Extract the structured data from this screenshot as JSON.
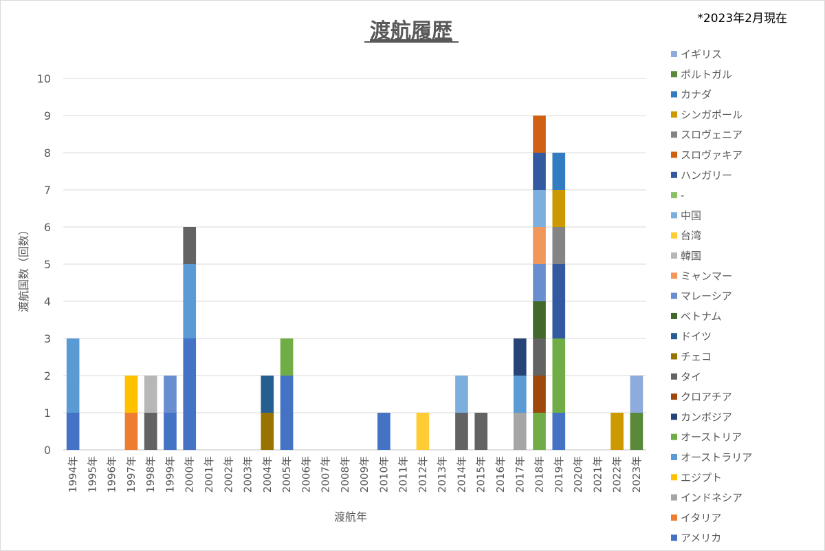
{
  "chart_data": {
    "type": "bar",
    "stacked": true,
    "title": "渡航履歴",
    "note": "*2023年2月現在",
    "xlabel": "渡航年",
    "ylabel": "渡航国数（回数）",
    "ylim": [
      0,
      10
    ],
    "yticks": [
      0,
      1,
      2,
      3,
      4,
      5,
      6,
      7,
      8,
      9,
      10
    ],
    "grid": true,
    "legend_position": "right",
    "categories": [
      "1994年",
      "1995年",
      "1996年",
      "1997年",
      "1998年",
      "1999年",
      "2000年",
      "2001年",
      "2002年",
      "2003年",
      "2004年",
      "2005年",
      "2006年",
      "2007年",
      "2008年",
      "2009年",
      "2010年",
      "2011年",
      "2012年",
      "2013年",
      "2014年",
      "2015年",
      "2016年",
      "2017年",
      "2018年",
      "2019年",
      "2020年",
      "2021年",
      "2022年",
      "2023年"
    ],
    "series": [
      {
        "name": "アメリカ",
        "color": "#4472C4",
        "values": [
          1,
          0,
          0,
          0,
          0,
          1,
          3,
          0,
          0,
          0,
          0,
          2,
          0,
          0,
          0,
          0,
          1,
          0,
          0,
          0,
          0,
          0,
          0,
          0,
          0,
          1,
          0,
          0,
          0,
          0
        ]
      },
      {
        "name": "イタリア",
        "color": "#ED7D31",
        "values": [
          0,
          0,
          0,
          1,
          0,
          0,
          0,
          0,
          0,
          0,
          0,
          0,
          0,
          0,
          0,
          0,
          0,
          0,
          0,
          0,
          0,
          0,
          0,
          0,
          0,
          0,
          0,
          0,
          0,
          0
        ]
      },
      {
        "name": "インドネシア",
        "color": "#A5A5A5",
        "values": [
          0,
          0,
          0,
          0,
          0,
          0,
          0,
          0,
          0,
          0,
          0,
          0,
          0,
          0,
          0,
          0,
          0,
          0,
          0,
          0,
          0,
          0,
          0,
          1,
          0,
          0,
          0,
          0,
          0,
          0
        ]
      },
      {
        "name": "エジプト",
        "color": "#FFC000",
        "values": [
          0,
          0,
          0,
          1,
          0,
          0,
          0,
          0,
          0,
          0,
          0,
          0,
          0,
          0,
          0,
          0,
          0,
          0,
          0,
          0,
          0,
          0,
          0,
          0,
          0,
          0,
          0,
          0,
          0,
          0
        ]
      },
      {
        "name": "オーストラリア",
        "color": "#5B9BD5",
        "values": [
          2,
          0,
          0,
          0,
          0,
          0,
          2,
          0,
          0,
          0,
          0,
          0,
          0,
          0,
          0,
          0,
          0,
          0,
          0,
          0,
          0,
          0,
          0,
          1,
          0,
          0,
          0,
          0,
          0,
          0
        ]
      },
      {
        "name": "オーストリア",
        "color": "#70AD47",
        "values": [
          0,
          0,
          0,
          0,
          0,
          0,
          0,
          0,
          0,
          0,
          0,
          1,
          0,
          0,
          0,
          0,
          0,
          0,
          0,
          0,
          0,
          0,
          0,
          0,
          1,
          2,
          0,
          0,
          0,
          0
        ]
      },
      {
        "name": "カンボジア",
        "color": "#264478",
        "values": [
          0,
          0,
          0,
          0,
          0,
          0,
          0,
          0,
          0,
          0,
          0,
          0,
          0,
          0,
          0,
          0,
          0,
          0,
          0,
          0,
          0,
          0,
          0,
          1,
          0,
          0,
          0,
          0,
          0,
          0
        ]
      },
      {
        "name": "クロアチア",
        "color": "#9E480E",
        "values": [
          0,
          0,
          0,
          0,
          0,
          0,
          0,
          0,
          0,
          0,
          0,
          0,
          0,
          0,
          0,
          0,
          0,
          0,
          0,
          0,
          0,
          0,
          0,
          0,
          1,
          0,
          0,
          0,
          0,
          0
        ]
      },
      {
        "name": "タイ",
        "color": "#636363",
        "values": [
          0,
          0,
          0,
          0,
          1,
          0,
          1,
          0,
          0,
          0,
          0,
          0,
          0,
          0,
          0,
          0,
          0,
          0,
          0,
          0,
          1,
          1,
          0,
          0,
          1,
          0,
          0,
          0,
          0,
          0
        ]
      },
      {
        "name": "チェコ",
        "color": "#997300",
        "values": [
          0,
          0,
          0,
          0,
          0,
          0,
          0,
          0,
          0,
          0,
          1,
          0,
          0,
          0,
          0,
          0,
          0,
          0,
          0,
          0,
          0,
          0,
          0,
          0,
          0,
          0,
          0,
          0,
          0,
          0
        ]
      },
      {
        "name": "ドイツ",
        "color": "#255E91",
        "values": [
          0,
          0,
          0,
          0,
          0,
          0,
          0,
          0,
          0,
          0,
          1,
          0,
          0,
          0,
          0,
          0,
          0,
          0,
          0,
          0,
          0,
          0,
          0,
          0,
          0,
          0,
          0,
          0,
          0,
          0
        ]
      },
      {
        "name": "ベトナム",
        "color": "#43682B",
        "values": [
          0,
          0,
          0,
          0,
          0,
          0,
          0,
          0,
          0,
          0,
          0,
          0,
          0,
          0,
          0,
          0,
          0,
          0,
          0,
          0,
          0,
          0,
          0,
          0,
          1,
          0,
          0,
          0,
          0,
          0
        ]
      },
      {
        "name": "マレーシア",
        "color": "#698ED0",
        "values": [
          0,
          0,
          0,
          0,
          0,
          1,
          0,
          0,
          0,
          0,
          0,
          0,
          0,
          0,
          0,
          0,
          0,
          0,
          0,
          0,
          0,
          0,
          0,
          0,
          1,
          0,
          0,
          0,
          0,
          0
        ]
      },
      {
        "name": "ミャンマー",
        "color": "#F1975A",
        "values": [
          0,
          0,
          0,
          0,
          0,
          0,
          0,
          0,
          0,
          0,
          0,
          0,
          0,
          0,
          0,
          0,
          0,
          0,
          0,
          0,
          0,
          0,
          0,
          0,
          1,
          0,
          0,
          0,
          0,
          0
        ]
      },
      {
        "name": "韓国",
        "color": "#B7B7B7",
        "values": [
          0,
          0,
          0,
          0,
          1,
          0,
          0,
          0,
          0,
          0,
          0,
          0,
          0,
          0,
          0,
          0,
          0,
          0,
          0,
          0,
          0,
          0,
          0,
          0,
          0,
          0,
          0,
          0,
          0,
          0
        ]
      },
      {
        "name": "台湾",
        "color": "#FFCD33",
        "values": [
          0,
          0,
          0,
          0,
          0,
          0,
          0,
          0,
          0,
          0,
          0,
          0,
          0,
          0,
          0,
          0,
          0,
          0,
          1,
          0,
          0,
          0,
          0,
          0,
          0,
          0,
          0,
          0,
          0,
          0
        ]
      },
      {
        "name": "中国",
        "color": "#7CAFDD",
        "values": [
          0,
          0,
          0,
          0,
          0,
          0,
          0,
          0,
          0,
          0,
          0,
          0,
          0,
          0,
          0,
          0,
          0,
          0,
          0,
          0,
          1,
          0,
          0,
          0,
          1,
          0,
          0,
          0,
          0,
          0
        ]
      },
      {
        "name": "-",
        "color": "#8CC168",
        "values": [
          0,
          0,
          0,
          0,
          0,
          0,
          0,
          0,
          0,
          0,
          0,
          0,
          0,
          0,
          0,
          0,
          0,
          0,
          0,
          0,
          0,
          0,
          0,
          0,
          0,
          0,
          0,
          0,
          0,
          0
        ]
      },
      {
        "name": "ハンガリー",
        "color": "#335AA1",
        "values": [
          0,
          0,
          0,
          0,
          0,
          0,
          0,
          0,
          0,
          0,
          0,
          0,
          0,
          0,
          0,
          0,
          0,
          0,
          0,
          0,
          0,
          0,
          0,
          0,
          1,
          2,
          0,
          0,
          0,
          0
        ]
      },
      {
        "name": "スロヴァキア",
        "color": "#D26012",
        "values": [
          0,
          0,
          0,
          0,
          0,
          0,
          0,
          0,
          0,
          0,
          0,
          0,
          0,
          0,
          0,
          0,
          0,
          0,
          0,
          0,
          0,
          0,
          0,
          0,
          1,
          0,
          0,
          0,
          0,
          0
        ]
      },
      {
        "name": "スロヴェニア",
        "color": "#848484",
        "values": [
          0,
          0,
          0,
          0,
          0,
          0,
          0,
          0,
          0,
          0,
          0,
          0,
          0,
          0,
          0,
          0,
          0,
          0,
          0,
          0,
          0,
          0,
          0,
          0,
          0,
          1,
          0,
          0,
          0,
          0
        ]
      },
      {
        "name": "シンガポール",
        "color": "#CC9A00",
        "values": [
          0,
          0,
          0,
          0,
          0,
          0,
          0,
          0,
          0,
          0,
          0,
          0,
          0,
          0,
          0,
          0,
          0,
          0,
          0,
          0,
          0,
          0,
          0,
          0,
          0,
          1,
          0,
          0,
          1,
          0
        ]
      },
      {
        "name": "カナダ",
        "color": "#327DC2",
        "values": [
          0,
          0,
          0,
          0,
          0,
          0,
          0,
          0,
          0,
          0,
          0,
          0,
          0,
          0,
          0,
          0,
          0,
          0,
          0,
          0,
          0,
          0,
          0,
          0,
          0,
          1,
          0,
          0,
          0,
          0
        ]
      },
      {
        "name": "ポルトガル",
        "color": "#5A8A39",
        "values": [
          0,
          0,
          0,
          0,
          0,
          0,
          0,
          0,
          0,
          0,
          0,
          0,
          0,
          0,
          0,
          0,
          0,
          0,
          0,
          0,
          0,
          0,
          0,
          0,
          0,
          0,
          0,
          0,
          0,
          1
        ]
      },
      {
        "name": "イギリス",
        "color": "#8FAADC",
        "values": [
          0,
          0,
          0,
          0,
          0,
          0,
          0,
          0,
          0,
          0,
          0,
          0,
          0,
          0,
          0,
          0,
          0,
          0,
          0,
          0,
          0,
          0,
          0,
          0,
          0,
          0,
          0,
          0,
          0,
          1
        ]
      }
    ]
  }
}
